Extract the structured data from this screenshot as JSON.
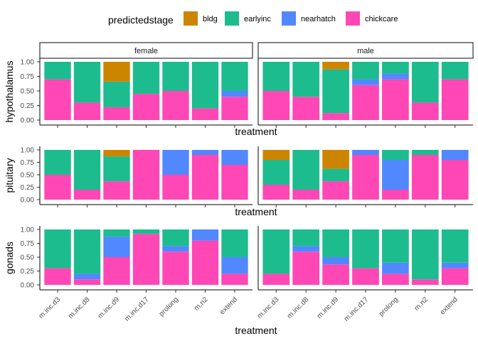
{
  "chart_data": {
    "type": "bar",
    "stacked": true,
    "normalized": true,
    "legend": {
      "title": "predictedstage",
      "placement": "top",
      "entries": [
        "bldg",
        "earlyinc",
        "nearhatch",
        "chickcare"
      ]
    },
    "colors": {
      "bldg": "#CD8500",
      "earlyinc": "#1DBC8E",
      "nearhatch": "#5288FF",
      "chickcare": "#FF47B5"
    },
    "columns": [
      "female",
      "male"
    ],
    "rows": [
      "hypothalamus",
      "pituitary",
      "gonads"
    ],
    "categories": [
      "m.inc.d3",
      "m.inc.d8",
      "m.inc.d9",
      "m.inc.d17",
      "prolong",
      "m.n2",
      "extend"
    ],
    "yticks": [
      "0.00",
      "0.25",
      "0.50",
      "0.75",
      "1.00"
    ],
    "ylim": [
      0,
      1
    ],
    "xlabel": "treatment",
    "panels": {
      "hypothalamus": {
        "female": {
          "chickcare": [
            0.7,
            0.3,
            0.22,
            0.45,
            0.5,
            0.2,
            0.4
          ],
          "nearhatch": [
            0.0,
            0.0,
            0.0,
            0.0,
            0.0,
            0.0,
            0.1
          ],
          "earlyinc": [
            0.3,
            0.7,
            0.44,
            0.55,
            0.5,
            0.8,
            0.5
          ],
          "bldg": [
            0.0,
            0.0,
            0.34,
            0.0,
            0.0,
            0.0,
            0.0
          ]
        },
        "male": {
          "chickcare": [
            0.5,
            0.4,
            0.12,
            0.6,
            0.7,
            0.3,
            0.7
          ],
          "nearhatch": [
            0.0,
            0.0,
            0.0,
            0.1,
            0.1,
            0.0,
            0.0
          ],
          "earlyinc": [
            0.5,
            0.6,
            0.75,
            0.3,
            0.2,
            0.7,
            0.3
          ],
          "bldg": [
            0.0,
            0.0,
            0.13,
            0.0,
            0.0,
            0.0,
            0.0
          ]
        }
      },
      "pituitary": {
        "female": {
          "chickcare": [
            0.5,
            0.2,
            0.37,
            1.0,
            0.5,
            0.9,
            0.7
          ],
          "nearhatch": [
            0.0,
            0.0,
            0.0,
            0.0,
            0.5,
            0.1,
            0.3
          ],
          "earlyinc": [
            0.5,
            0.8,
            0.5,
            0.0,
            0.0,
            0.0,
            0.0
          ],
          "bldg": [
            0.0,
            0.0,
            0.13,
            0.0,
            0.0,
            0.0,
            0.0
          ]
        },
        "male": {
          "chickcare": [
            0.3,
            0.2,
            0.37,
            0.9,
            0.2,
            0.9,
            0.8
          ],
          "nearhatch": [
            0.0,
            0.0,
            0.0,
            0.1,
            0.6,
            0.0,
            0.2
          ],
          "earlyinc": [
            0.5,
            0.8,
            0.25,
            0.0,
            0.2,
            0.1,
            0.0
          ],
          "bldg": [
            0.2,
            0.0,
            0.38,
            0.0,
            0.0,
            0.0,
            0.0
          ]
        }
      },
      "gonads": {
        "female": {
          "chickcare": [
            0.3,
            0.1,
            0.5,
            0.92,
            0.6,
            0.8,
            0.2
          ],
          "nearhatch": [
            0.0,
            0.1,
            0.37,
            0.0,
            0.1,
            0.2,
            0.3
          ],
          "earlyinc": [
            0.7,
            0.8,
            0.13,
            0.08,
            0.3,
            0.0,
            0.5
          ],
          "bldg": [
            0.0,
            0.0,
            0.0,
            0.0,
            0.0,
            0.0,
            0.0
          ]
        },
        "male": {
          "chickcare": [
            0.2,
            0.6,
            0.37,
            0.3,
            0.2,
            0.1,
            0.3
          ],
          "nearhatch": [
            0.0,
            0.1,
            0.13,
            0.0,
            0.2,
            0.0,
            0.1
          ],
          "earlyinc": [
            0.8,
            0.3,
            0.5,
            0.7,
            0.6,
            0.9,
            0.6
          ],
          "bldg": [
            0.0,
            0.0,
            0.0,
            0.0,
            0.0,
            0.0,
            0.0
          ]
        }
      }
    }
  }
}
